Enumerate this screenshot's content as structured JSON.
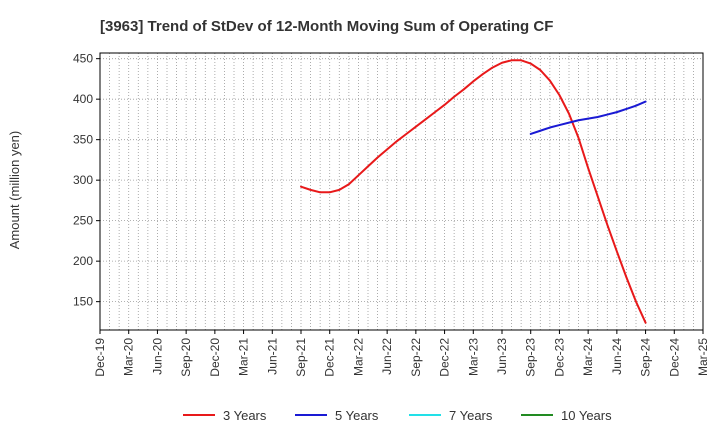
{
  "chart_data": {
    "type": "line",
    "title": "[3963]  Trend of StDev of 12-Month Moving Sum of Operating CF",
    "ylabel": "Amount (million yen)",
    "xlabel": "",
    "ylim": [
      115,
      457
    ],
    "yticks": [
      150,
      200,
      250,
      300,
      350,
      400,
      450
    ],
    "grid": true,
    "legend_position": "bottom",
    "categories": [
      "Dec-19",
      "Mar-20",
      "Jun-20",
      "Sep-20",
      "Dec-20",
      "Mar-21",
      "Jun-21",
      "Sep-21",
      "Dec-21",
      "Mar-22",
      "Jun-22",
      "Sep-22",
      "Dec-22",
      "Mar-23",
      "Jun-23",
      "Sep-23",
      "Dec-23",
      "Mar-24",
      "Jun-24",
      "Sep-24",
      "Dec-24",
      "Mar-25"
    ],
    "series": [
      {
        "name": "3 Years",
        "color": "#e8191a",
        "points": [
          [
            "Sep-21",
            292
          ],
          [
            "Oct-21",
            288
          ],
          [
            "Nov-21",
            285
          ],
          [
            "Dec-21",
            285
          ],
          [
            "Jan-22",
            288
          ],
          [
            "Feb-22",
            295
          ],
          [
            "Mar-22",
            306
          ],
          [
            "Apr-22",
            317
          ],
          [
            "May-22",
            328
          ],
          [
            "Jun-22",
            338
          ],
          [
            "Jul-22",
            348
          ],
          [
            "Aug-22",
            357
          ],
          [
            "Sep-22",
            366
          ],
          [
            "Oct-22",
            375
          ],
          [
            "Nov-22",
            384
          ],
          [
            "Dec-22",
            393
          ],
          [
            "Jan-23",
            403
          ],
          [
            "Feb-23",
            412
          ],
          [
            "Mar-23",
            422
          ],
          [
            "Apr-23",
            431
          ],
          [
            "May-23",
            439
          ],
          [
            "Jun-23",
            445
          ],
          [
            "Jul-23",
            448
          ],
          [
            "Aug-23",
            448
          ],
          [
            "Sep-23",
            444
          ],
          [
            "Oct-23",
            436
          ],
          [
            "Nov-23",
            423
          ],
          [
            "Dec-23",
            405
          ],
          [
            "Jan-24",
            382
          ],
          [
            "Feb-24",
            352
          ],
          [
            "Mar-24",
            315
          ],
          [
            "Apr-24",
            280
          ],
          [
            "May-24",
            245
          ],
          [
            "Jun-24",
            212
          ],
          [
            "Jul-24",
            180
          ],
          [
            "Aug-24",
            150
          ],
          [
            "Sep-24",
            124
          ]
        ]
      },
      {
        "name": "5 Years",
        "color": "#1a1ad4",
        "points": [
          [
            "Sep-23",
            357
          ],
          [
            "Oct-23",
            361
          ],
          [
            "Nov-23",
            365
          ],
          [
            "Dec-23",
            368
          ],
          [
            "Jan-24",
            371
          ],
          [
            "Feb-24",
            374
          ],
          [
            "Mar-24",
            376
          ],
          [
            "Apr-24",
            378
          ],
          [
            "May-24",
            381
          ],
          [
            "Jun-24",
            384
          ],
          [
            "Jul-24",
            388
          ],
          [
            "Aug-24",
            392
          ],
          [
            "Sep-24",
            397
          ]
        ]
      },
      {
        "name": "7 Years",
        "color": "#22e0e8",
        "points": []
      },
      {
        "name": "10 Years",
        "color": "#228b22",
        "points": []
      }
    ]
  }
}
